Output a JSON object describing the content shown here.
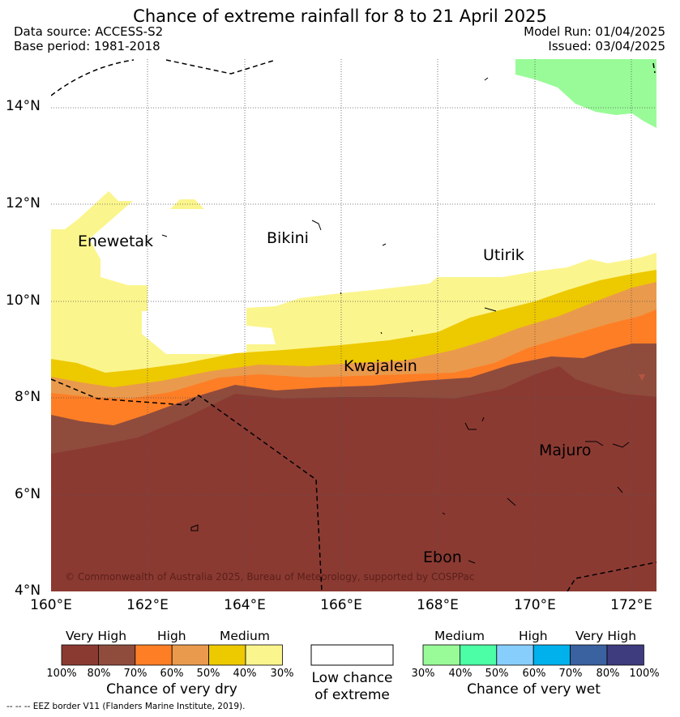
{
  "title": "Chance of extreme rainfall for 8 to 21 April 2025",
  "header": {
    "data_source": "Data source: ACCESS-S2",
    "base_period": "Base period: 1981-2018",
    "model_run": "Model Run: 01/04/2025",
    "issued": "Issued: 03/04/2025"
  },
  "map": {
    "lat_labels": [
      "14°N",
      "12°N",
      "10°N",
      "8°N",
      "6°N",
      "4°N"
    ],
    "lon_labels": [
      "160°E",
      "162°E",
      "164°E",
      "166°E",
      "168°E",
      "170°E",
      "172°E"
    ],
    "places": {
      "enewetak": "Enewetak",
      "bikini": "Bikini",
      "utirik": "Utirik",
      "kwajalein": "Kwajalein",
      "majuro": "Majuro",
      "ebon": "Ebon"
    },
    "copyright": "© Commonwealth of Australia 2025, Bureau of Meteorology, supported by COSPPac"
  },
  "legend": {
    "dry": {
      "headers": [
        "Very High",
        "High",
        "Medium"
      ],
      "ticks": [
        "100%",
        "80%",
        "70%",
        "60%",
        "50%",
        "40%",
        "30%"
      ],
      "colors": [
        "#8b3a32",
        "#8f4c3d",
        "#fe7e26",
        "#ea9a4c",
        "#edc900",
        "#fbf58d"
      ],
      "caption": "Chance of very dry"
    },
    "neutral": {
      "caption_line1": "Low chance",
      "caption_line2": "of extreme",
      "color": "#ffffff"
    },
    "wet": {
      "headers": [
        "Medium",
        "High",
        "Very High"
      ],
      "ticks": [
        "30%",
        "40%",
        "50%",
        "60%",
        "70%",
        "80%",
        "100%"
      ],
      "colors": [
        "#99fb98",
        "#4cfea6",
        "#87cefd",
        "#00b1ec",
        "#3a61a0",
        "#3e3c7e"
      ],
      "caption": "Chance of very wet"
    }
  },
  "footnote": "--  --  -- EEZ border V11 (Flanders Marine Institute, 2019)."
}
